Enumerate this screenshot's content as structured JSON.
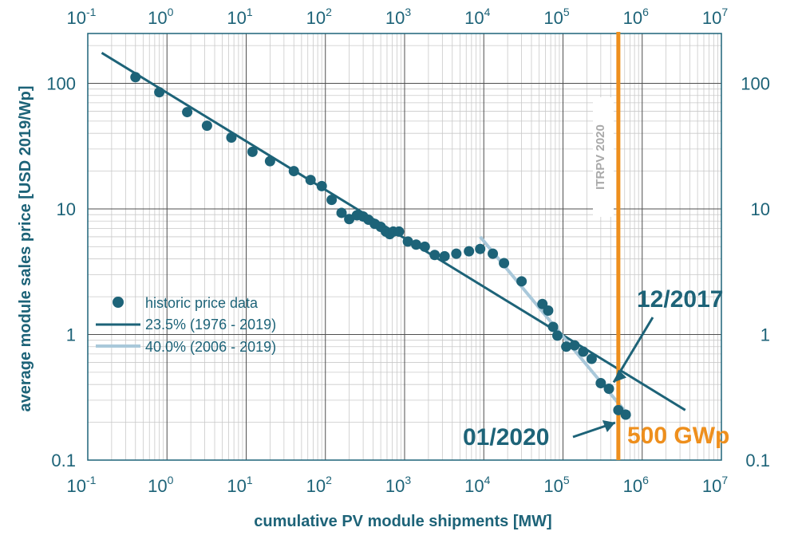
{
  "chart_data": {
    "type": "scatter",
    "xscale": "log",
    "yscale": "log",
    "xlim": [
      0.1,
      10000000
    ],
    "ylim": [
      0.1,
      200
    ],
    "xlabel": "cumulative PV module shipments [MW]",
    "ylabel": "average module sales price [USD 2019/Wp]",
    "x_tick_labels": [
      {
        "base": "10",
        "exp": "-1"
      },
      {
        "base": "10",
        "exp": "0"
      },
      {
        "base": "10",
        "exp": "1"
      },
      {
        "base": "10",
        "exp": "2"
      },
      {
        "base": "10",
        "exp": "3"
      },
      {
        "base": "10",
        "exp": "4"
      },
      {
        "base": "10",
        "exp": "5"
      },
      {
        "base": "10",
        "exp": "6"
      },
      {
        "base": "10",
        "exp": "7"
      }
    ],
    "y_tick_labels": [
      "100",
      "10",
      "1",
      "0.1"
    ],
    "y_tick_values": [
      100,
      10,
      1,
      0.1
    ],
    "legend": {
      "placement": "center-left",
      "entries": [
        {
          "label": "historic price data",
          "kind": "marker"
        },
        {
          "label": "23.5% (1976 - 2019)",
          "kind": "line-dark"
        },
        {
          "label": "40.0% (2006 - 2019)",
          "kind": "line-light"
        }
      ]
    },
    "series": [
      {
        "name": "historic price data",
        "kind": "scatter",
        "points": [
          [
            0.4,
            112
          ],
          [
            0.8,
            85
          ],
          [
            1.8,
            59
          ],
          [
            3.2,
            46
          ],
          [
            6.5,
            37
          ],
          [
            12,
            28.5
          ],
          [
            20,
            24
          ],
          [
            40,
            20
          ],
          [
            65,
            17
          ],
          [
            90,
            15.2
          ],
          [
            120,
            11.8
          ],
          [
            160,
            9.3
          ],
          [
            200,
            8.3
          ],
          [
            250,
            8.9
          ],
          [
            300,
            8.7
          ],
          [
            350,
            8.2
          ],
          [
            420,
            7.6
          ],
          [
            500,
            7.2
          ],
          [
            580,
            6.6
          ],
          [
            650,
            6.3
          ],
          [
            720,
            6.6
          ],
          [
            850,
            6.6
          ],
          [
            1100,
            5.5
          ],
          [
            1400,
            5.2
          ],
          [
            1800,
            5.0
          ],
          [
            2400,
            4.3
          ],
          [
            3200,
            4.2
          ],
          [
            4500,
            4.4
          ],
          [
            6500,
            4.6
          ],
          [
            9000,
            4.8
          ],
          [
            13000,
            4.4
          ],
          [
            18000,
            3.7
          ],
          [
            30000,
            2.65
          ],
          [
            55000,
            1.75
          ],
          [
            65000,
            1.55
          ],
          [
            75000,
            1.15
          ],
          [
            85000,
            0.98
          ],
          [
            110000,
            0.8
          ],
          [
            140000,
            0.82
          ],
          [
            180000,
            0.73
          ],
          [
            230000,
            0.64
          ],
          [
            300000,
            0.41
          ],
          [
            380000,
            0.37
          ],
          [
            500000,
            0.25
          ],
          [
            620000,
            0.23
          ]
        ]
      },
      {
        "name": "23.5% (1976 - 2019)",
        "kind": "line",
        "points": [
          [
            0.15,
            175
          ],
          [
            3500000,
            0.25
          ]
        ]
      },
      {
        "name": "40.0% (2006 - 2019)",
        "kind": "line",
        "points": [
          [
            9000,
            6.0
          ],
          [
            700000,
            0.22
          ]
        ]
      }
    ],
    "marker_line": {
      "label": "ITRPV 2020",
      "x": 500000,
      "callout": "500 GWp"
    },
    "annotations": [
      {
        "text": "12/2017",
        "target": [
          380000,
          0.37
        ]
      },
      {
        "text": "01/2020",
        "target": [
          500000,
          0.23
        ]
      }
    ],
    "grid": true
  },
  "colors": {
    "series": "#1d6378",
    "fit_dark": "#1d6378",
    "fit_light": "#a9c8da",
    "highlight": "#ee8f1d",
    "text": "#1d6378",
    "grid_major": "#4f4f4f",
    "grid_minor": "#c9c9c9"
  }
}
